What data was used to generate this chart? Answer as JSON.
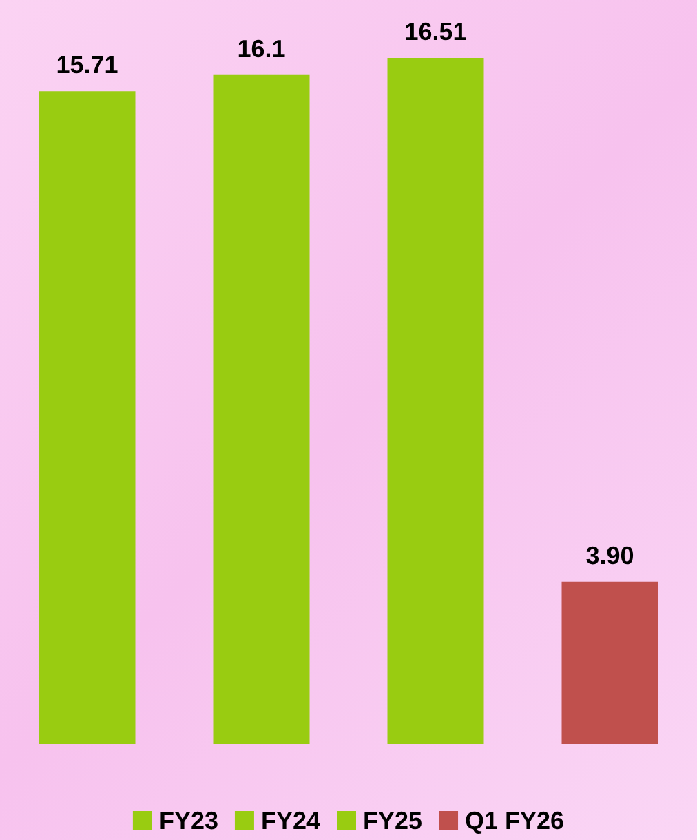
{
  "chart_data": {
    "type": "bar",
    "categories": [
      null,
      null,
      null,
      null
    ],
    "series": [
      {
        "name": "FY23",
        "color": "#99cc11",
        "values": [
          15.71,
          null,
          null,
          null
        ],
        "value_labels": [
          "15.71",
          null,
          null,
          null
        ]
      },
      {
        "name": "FY24",
        "color": "#99cc11",
        "values": [
          null,
          16.1,
          null,
          null
        ],
        "value_labels": [
          null,
          "16.1",
          null,
          null
        ]
      },
      {
        "name": "FY25",
        "color": "#99cc11",
        "values": [
          null,
          null,
          16.51,
          null
        ],
        "value_labels": [
          null,
          null,
          "16.51",
          null
        ]
      },
      {
        "name": "Q1 FY26",
        "color": "#c0504d",
        "values": [
          null,
          null,
          null,
          3.9
        ],
        "value_labels": [
          null,
          null,
          null,
          "3.90"
        ]
      }
    ],
    "stacked": true,
    "legend": "bottom"
  }
}
